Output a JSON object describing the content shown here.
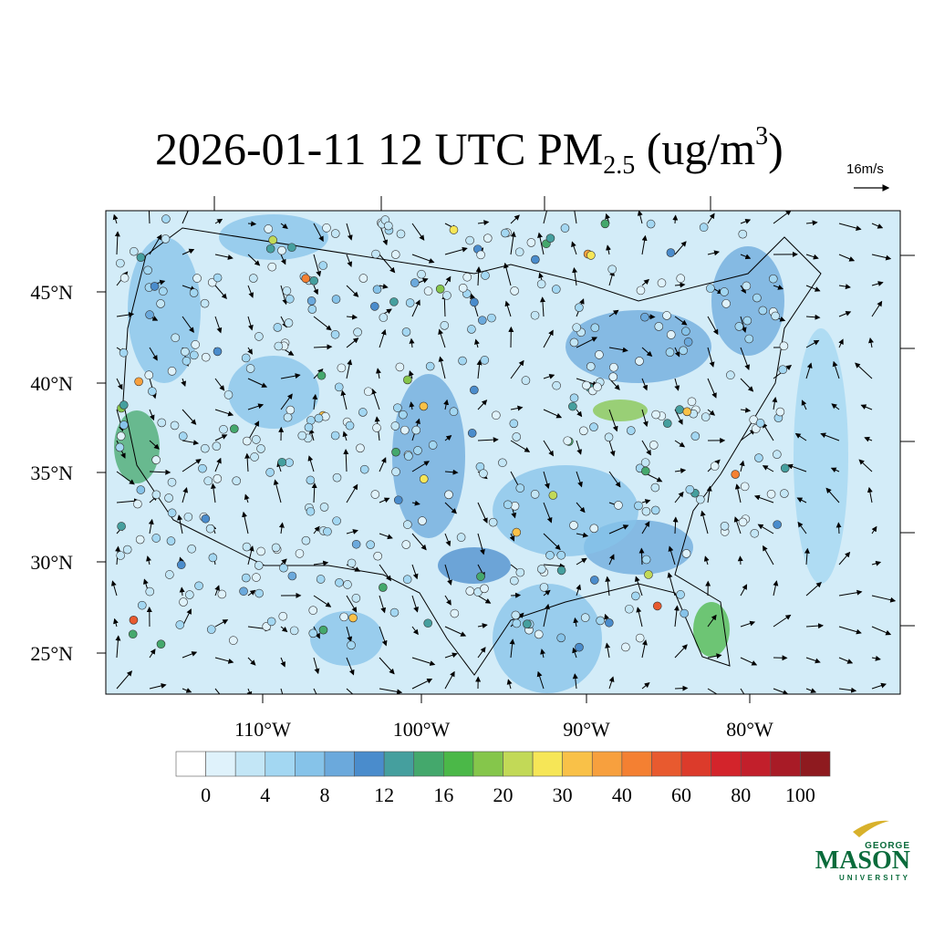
{
  "title": {
    "main": "2026-01-11 12 UTC PM",
    "subscript": "2.5",
    "unit_open": " (ug/m",
    "superscript": "3",
    "unit_close": ")"
  },
  "reference_vector": "16m/s",
  "latitude_labels": [
    "45°N",
    "40°N",
    "35°N",
    "30°N",
    "25°N"
  ],
  "longitude_labels": [
    "110°W",
    "100°W",
    "90°W",
    "80°W"
  ],
  "colorbar": {
    "labels": [
      0,
      4,
      8,
      12,
      16,
      20,
      30,
      40,
      60,
      80,
      100
    ],
    "colors": [
      "#ffffff",
      "#dff2fb",
      "#c3e6f6",
      "#a3d7f2",
      "#86c3e9",
      "#6ba9dc",
      "#4a8ccc",
      "#459f9e",
      "#44a86c",
      "#4bb848",
      "#85c64b",
      "#c2d957",
      "#f6e657",
      "#f9c148",
      "#f7a03e",
      "#f48032",
      "#e85a2f",
      "#dc3b2b",
      "#d3242b",
      "#c21f2b",
      "#a81b26",
      "#8e1a1f"
    ]
  },
  "logo": {
    "top": "GEORGE",
    "main": "MASON",
    "bottom": "UNIVERSITY"
  }
}
